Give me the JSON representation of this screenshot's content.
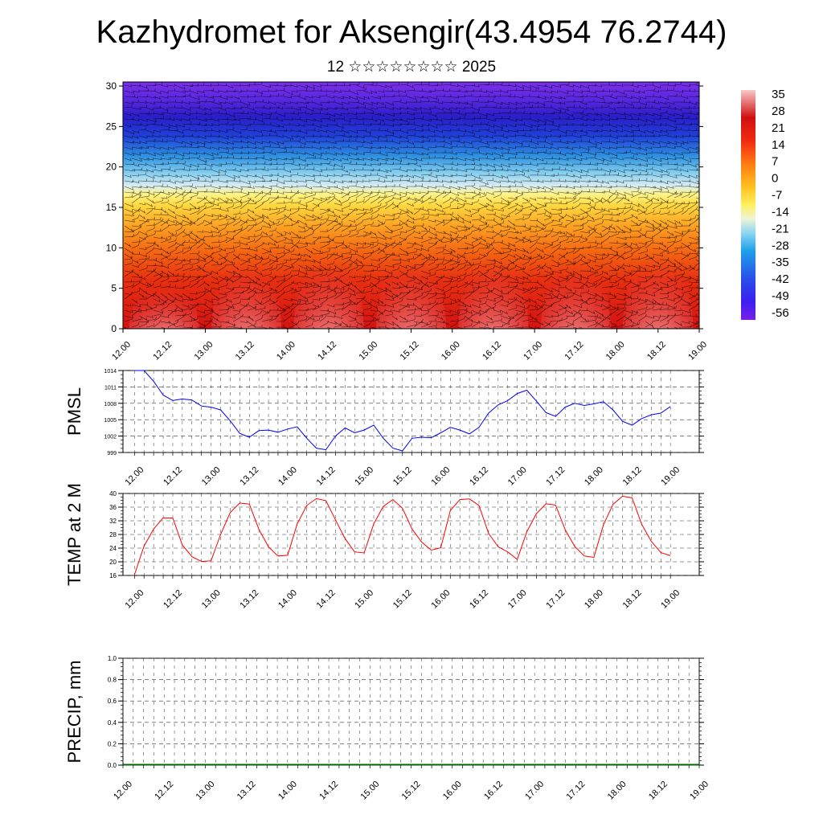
{
  "header": {
    "title": "Kazhydromet for Aksengir(43.4954 76.2744)",
    "subtitle": "12 ☆☆☆☆☆☆☆☆ 2025"
  },
  "chart_data": [
    {
      "id": "cross-section",
      "type": "heatmap",
      "title": "",
      "xlabel": "",
      "ylabel": "",
      "x_ticks": [
        "12.00",
        "12.12",
        "13.00",
        "13.12",
        "14.00",
        "14.12",
        "15.00",
        "15.12",
        "16.00",
        "16.12",
        "17.00",
        "17.12",
        "18.00",
        "18.12",
        "19.00"
      ],
      "y_ticks": [
        0,
        5,
        10,
        15,
        20,
        25,
        30
      ],
      "ylim": [
        0,
        30.5
      ],
      "colorbar": {
        "labels": [
          "35",
          "28",
          "21",
          "14",
          "7",
          "0",
          "-7",
          "-14",
          "-21",
          "-28",
          "-35",
          "-42",
          "-49",
          "-56"
        ],
        "range": [
          -60,
          38
        ]
      },
      "field_description": "Temperature field with wind barbs; warm surface layer with diurnal maxima near each midday, cold layer near level 25",
      "daily_surface_max": [
        33,
        37.5,
        38.5,
        38,
        38.5,
        37,
        39
      ]
    },
    {
      "id": "pmsl",
      "type": "line",
      "ylabel": "PMSL",
      "color": "#0000ff",
      "ylim": [
        999,
        1014
      ],
      "y_ticks": [
        999,
        1002,
        1005,
        1008,
        1011,
        1014
      ],
      "x_ticks": [
        "12.00",
        "12.12",
        "13.00",
        "13.12",
        "14.00",
        "14.12",
        "15.00",
        "15.12",
        "16.00",
        "16.12",
        "17.00",
        "17.12",
        "18.00",
        "18.12",
        "19.00"
      ],
      "step_hours": 3,
      "values": [
        1014,
        1014,
        1012,
        1009.5,
        1008.5,
        1008.8,
        1008.6,
        1007.5,
        1007.3,
        1006.8,
        1004.8,
        1002.5,
        1001.8,
        1003,
        1003.1,
        1002.7,
        1003.3,
        1003.7,
        1001.6,
        999.8,
        999.5,
        1002,
        1003.5,
        1002.6,
        1003.1,
        1004,
        1001.6,
        999.8,
        999.3,
        1001.6,
        1001.8,
        1001.7,
        1002.6,
        1003.6,
        1003.1,
        1002.4,
        1003.6,
        1006.2,
        1007.7,
        1008.5,
        1009.8,
        1010.4,
        1008.4,
        1006.3,
        1005.6,
        1007.3,
        1008,
        1007.6,
        1007.9,
        1008.3,
        1006.8,
        1004.7,
        1004,
        1005.2,
        1005.9,
        1006.2,
        1007.4
      ]
    },
    {
      "id": "temp2m",
      "type": "line",
      "ylabel": "TEMP at 2 M",
      "color": "#ff0000",
      "ylim": [
        16,
        40
      ],
      "y_ticks": [
        16,
        20,
        24,
        28,
        32,
        36,
        40
      ],
      "x_ticks": [
        "12.00",
        "12.12",
        "13.00",
        "13.12",
        "14.00",
        "14.12",
        "15.00",
        "15.12",
        "16.00",
        "16.12",
        "17.00",
        "17.12",
        "18.00",
        "18.12",
        "19.00"
      ],
      "step_hours": 3,
      "values": [
        16.2,
        24.6,
        29.6,
        32.9,
        32.8,
        24.9,
        21.5,
        20.1,
        20.3,
        28,
        34.4,
        37.2,
        36.9,
        29.5,
        24.4,
        21.7,
        21.9,
        31.1,
        36.5,
        38.5,
        37.9,
        32.3,
        26.8,
        22.9,
        22.6,
        31.1,
        36.2,
        38.2,
        35.7,
        29.6,
        25.8,
        23.4,
        24.1,
        35,
        38.2,
        38.4,
        36.5,
        28.3,
        24.4,
        22.9,
        20.7,
        28.8,
        34.1,
        37,
        36.6,
        29.4,
        24.5,
        21.7,
        21.3,
        30.8,
        36.8,
        39.2,
        38.7,
        31,
        26,
        22.7,
        21.8
      ]
    },
    {
      "id": "precip",
      "type": "bar",
      "ylabel": "PRECIP, mm",
      "color": "#006400",
      "ylim": [
        0,
        1.0
      ],
      "y_ticks": [
        "0.0",
        "0.2",
        "0.4",
        "0.6",
        "0.8",
        "1.0"
      ],
      "x_ticks": [
        "12.00",
        "12.12",
        "13.00",
        "13.12",
        "14.00",
        "14.12",
        "15.00",
        "15.12",
        "16.00",
        "16.12",
        "17.00",
        "17.12",
        "18.00",
        "18.12",
        "19.00"
      ],
      "step_hours": 3,
      "values": [
        0,
        0,
        0,
        0,
        0,
        0,
        0,
        0,
        0,
        0,
        0,
        0,
        0,
        0,
        0,
        0,
        0,
        0,
        0,
        0,
        0,
        0,
        0,
        0,
        0,
        0,
        0,
        0,
        0,
        0,
        0,
        0,
        0,
        0,
        0,
        0,
        0,
        0,
        0,
        0,
        0,
        0,
        0,
        0,
        0,
        0,
        0,
        0,
        0,
        0,
        0,
        0,
        0,
        0,
        0,
        0,
        0
      ]
    }
  ]
}
